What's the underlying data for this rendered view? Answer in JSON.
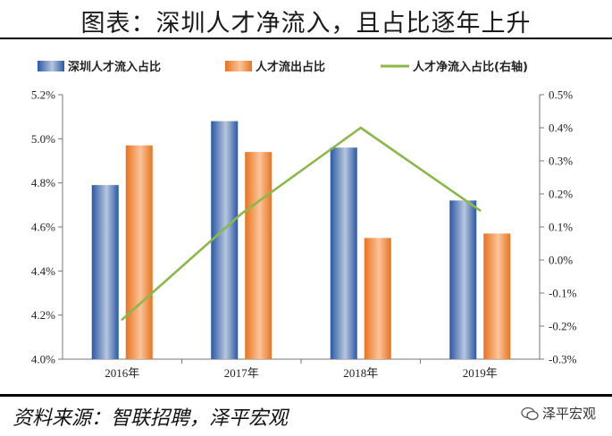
{
  "header": {
    "title": "图表：深圳人才净流入，且占比逐年上升"
  },
  "footer": {
    "source": "资料来源：智联招聘，泽平宏观",
    "watermark": "泽平宏观"
  },
  "colors": {
    "blue": "#3a6bb5",
    "orange": "#f0883a",
    "green": "#8cb84a"
  },
  "chart_data": {
    "type": "bar",
    "categories": [
      "2016年",
      "2017年",
      "2018年",
      "2019年"
    ],
    "series": [
      {
        "name": "深圳人才流入占比",
        "type": "bar",
        "axis": "left",
        "values": [
          4.79,
          5.08,
          4.96,
          4.72
        ]
      },
      {
        "name": "人才流出占比",
        "type": "bar",
        "axis": "left",
        "values": [
          4.97,
          4.94,
          4.55,
          4.57
        ]
      },
      {
        "name": "人才净流入占比(右轴)",
        "type": "line",
        "axis": "right",
        "values": [
          -0.18,
          0.14,
          0.4,
          0.15
        ]
      }
    ],
    "left_axis": {
      "ylim": [
        4.0,
        5.2
      ],
      "ticks": [
        "4.0%",
        "4.2%",
        "4.4%",
        "4.6%",
        "4.8%",
        "5.0%",
        "5.2%"
      ]
    },
    "right_axis": {
      "ylim": [
        -0.3,
        0.5
      ],
      "ticks": [
        "-0.3%",
        "-0.2%",
        "-0.1%",
        "0.0%",
        "0.1%",
        "0.2%",
        "0.3%",
        "0.4%",
        "0.5%"
      ]
    }
  }
}
